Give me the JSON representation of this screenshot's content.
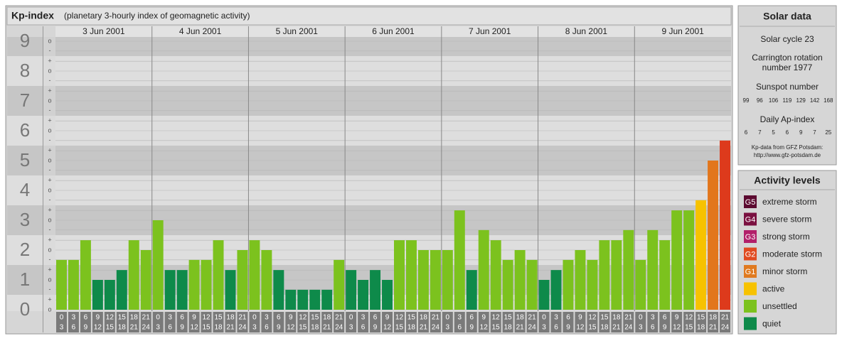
{
  "chart_data": {
    "type": "bar",
    "title": "Kp-index",
    "subtitle": "(planetary 3-hourly index of geomagnetic activity)",
    "categories": [
      "3 Jun 2001",
      "4 Jun 2001",
      "5 Jun 2001",
      "6 Jun 2001",
      "7 Jun 2001",
      "8 Jun 2001",
      "9 Jun 2001"
    ],
    "hours": [
      [
        0,
        3
      ],
      [
        3,
        6
      ],
      [
        6,
        9
      ],
      [
        9,
        12
      ],
      [
        12,
        15
      ],
      [
        15,
        18
      ],
      [
        18,
        21
      ],
      [
        21,
        24
      ]
    ],
    "values": [
      [
        1.67,
        1.67,
        2.33,
        1,
        1,
        1.33,
        2.33,
        2
      ],
      [
        3,
        1.33,
        1.33,
        1.67,
        1.67,
        2.33,
        1.33,
        2
      ],
      [
        2.33,
        2,
        1.33,
        0.67,
        0.67,
        0.67,
        0.67,
        1.67
      ],
      [
        1.33,
        1,
        1.33,
        1,
        2.33,
        2.33,
        2,
        2
      ],
      [
        2,
        3.33,
        1.33,
        2.67,
        2.33,
        1.67,
        2,
        1.67
      ],
      [
        1,
        1.33,
        1.67,
        2,
        1.67,
        2.33,
        2.33,
        2.67
      ],
      [
        1.67,
        2.67,
        2.33,
        3.33,
        3.33,
        3.67,
        5,
        5.67
      ]
    ],
    "colors": [
      [
        "#7cc21e",
        "#7cc21e",
        "#7cc21e",
        "#0e8a4a",
        "#0e8a4a",
        "#0e8a4a",
        "#7cc21e",
        "#7cc21e"
      ],
      [
        "#7cc21e",
        "#0e8a4a",
        "#0e8a4a",
        "#7cc21e",
        "#7cc21e",
        "#7cc21e",
        "#0e8a4a",
        "#7cc21e"
      ],
      [
        "#7cc21e",
        "#7cc21e",
        "#0e8a4a",
        "#0e8a4a",
        "#0e8a4a",
        "#0e8a4a",
        "#0e8a4a",
        "#7cc21e"
      ],
      [
        "#0e8a4a",
        "#0e8a4a",
        "#0e8a4a",
        "#0e8a4a",
        "#7cc21e",
        "#7cc21e",
        "#7cc21e",
        "#7cc21e"
      ],
      [
        "#7cc21e",
        "#7cc21e",
        "#0e8a4a",
        "#7cc21e",
        "#7cc21e",
        "#7cc21e",
        "#7cc21e",
        "#7cc21e"
      ],
      [
        "#0e8a4a",
        "#0e8a4a",
        "#7cc21e",
        "#7cc21e",
        "#7cc21e",
        "#7cc21e",
        "#7cc21e",
        "#7cc21e"
      ],
      [
        "#7cc21e",
        "#7cc21e",
        "#7cc21e",
        "#7cc21e",
        "#7cc21e",
        "#f7c200",
        "#e2761c",
        "#dd3a1c"
      ]
    ],
    "ylim": [
      -0.5,
      9.5
    ],
    "yticks": [
      0,
      1,
      2,
      3,
      4,
      5,
      6,
      7,
      8,
      9
    ],
    "minor_ticks": [
      {
        "value": 0,
        "label": "o"
      },
      {
        "value": 0.33,
        "label": "+"
      },
      {
        "value": 0.67,
        "label": "-"
      },
      {
        "value": 1,
        "label": "o"
      },
      {
        "value": 1.33,
        "label": "+"
      },
      {
        "value": 1.67,
        "label": "-"
      },
      {
        "value": 2,
        "label": "o"
      },
      {
        "value": 2.33,
        "label": "+"
      },
      {
        "value": 2.67,
        "label": "-"
      },
      {
        "value": 3,
        "label": "o"
      },
      {
        "value": 3.33,
        "label": "+"
      },
      {
        "value": 3.67,
        "label": "-"
      },
      {
        "value": 4,
        "label": "o"
      },
      {
        "value": 4.33,
        "label": "+"
      },
      {
        "value": 4.67,
        "label": "-"
      },
      {
        "value": 5,
        "label": "o"
      },
      {
        "value": 5.33,
        "label": "+"
      },
      {
        "value": 5.67,
        "label": "-"
      },
      {
        "value": 6,
        "label": "o"
      },
      {
        "value": 6.33,
        "label": "+"
      },
      {
        "value": 6.67,
        "label": "-"
      },
      {
        "value": 7,
        "label": "o"
      },
      {
        "value": 7.33,
        "label": "+"
      },
      {
        "value": 7.67,
        "label": "-"
      },
      {
        "value": 8,
        "label": "o"
      },
      {
        "value": 8.33,
        "label": "+"
      },
      {
        "value": 8.67,
        "label": "-"
      },
      {
        "value": 9,
        "label": "o"
      }
    ],
    "grid": true
  },
  "solar": {
    "title": "Solar data",
    "cycle": "Solar cycle 23",
    "carrington": [
      "Carrington rotation",
      "number 1977"
    ],
    "sunspot_label": "Sunspot number",
    "sunspot": [
      99,
      96,
      106,
      119,
      129,
      142,
      168
    ],
    "ap_label": "Daily Ap-index",
    "ap": [
      6,
      7,
      5,
      6,
      9,
      7,
      25
    ],
    "source": [
      "Kp-data from GFZ Potsdam:",
      "http://www.gfz-potsdam.de"
    ]
  },
  "legend": {
    "title": "Activity levels",
    "items": [
      {
        "badge": "G5",
        "name": "extreme storm",
        "color": "#5c0a30"
      },
      {
        "badge": "G4",
        "name": "severe storm",
        "color": "#7a1040"
      },
      {
        "badge": "G3",
        "name": "strong storm",
        "color": "#b2206a"
      },
      {
        "badge": "G2",
        "name": "moderate storm",
        "color": "#e04a20"
      },
      {
        "badge": "G1",
        "name": "minor storm",
        "color": "#e07a20"
      },
      {
        "name": "active",
        "color": "#f7c200"
      },
      {
        "name": "unsettled",
        "color": "#7cc21e"
      },
      {
        "name": "quiet",
        "color": "#0e8a4a"
      }
    ]
  }
}
